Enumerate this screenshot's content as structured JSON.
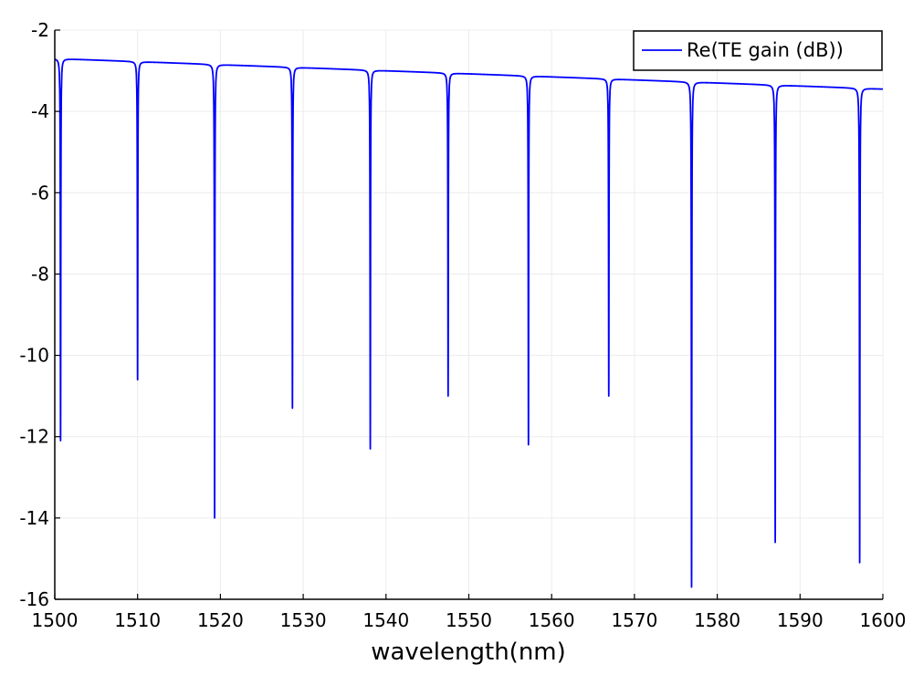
{
  "chart_data": {
    "type": "line",
    "title": "",
    "xlabel": "wavelength(nm)",
    "ylabel": "",
    "xlim": [
      1500,
      1600
    ],
    "ylim": [
      -16,
      -2
    ],
    "xticks": [
      1500,
      1510,
      1520,
      1530,
      1540,
      1550,
      1560,
      1570,
      1580,
      1590,
      1600
    ],
    "xtick_labels": [
      "1500",
      "1510",
      "1520",
      "1530",
      "1540",
      "1550",
      "1560",
      "1570",
      "1580",
      "1590",
      "1600"
    ],
    "yticks": [
      -2,
      -4,
      -6,
      -8,
      -10,
      -12,
      -14,
      -16
    ],
    "ytick_labels": [
      "-2",
      "-4",
      "-6",
      "-8",
      "-10",
      "-12",
      "-14",
      "-16"
    ],
    "grid": true,
    "legend_position": "top-right",
    "series": [
      {
        "name": "Re(TE gain (dB))",
        "color": "#0000ff",
        "baseline_start": -2.7,
        "baseline_end": -3.45,
        "dips": [
          {
            "x": 1500.7,
            "min": -12.1
          },
          {
            "x": 1510.0,
            "min": -10.6
          },
          {
            "x": 1519.3,
            "min": -14.0
          },
          {
            "x": 1528.7,
            "min": -11.3
          },
          {
            "x": 1538.1,
            "min": -12.3
          },
          {
            "x": 1547.5,
            "min": -11.0
          },
          {
            "x": 1557.2,
            "min": -12.2
          },
          {
            "x": 1566.9,
            "min": -11.0
          },
          {
            "x": 1576.9,
            "min": -15.7
          },
          {
            "x": 1587.0,
            "min": -14.6
          },
          {
            "x": 1597.2,
            "min": -15.1
          }
        ]
      }
    ]
  }
}
